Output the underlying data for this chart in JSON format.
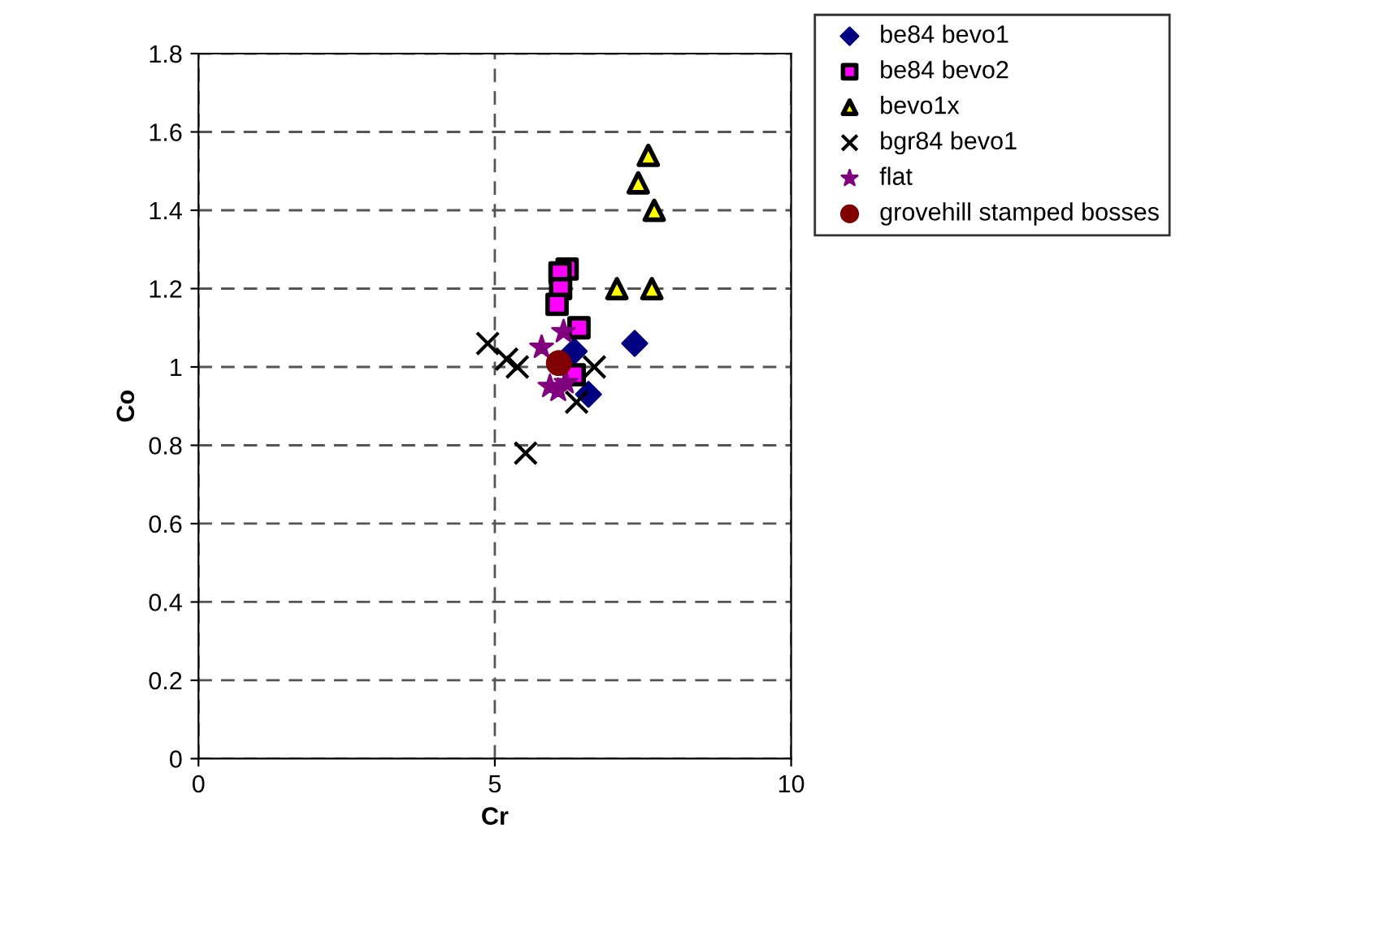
{
  "chart_data": {
    "type": "scatter",
    "xlabel": "Cr",
    "ylabel": "Co",
    "xlim": [
      0,
      10
    ],
    "ylim": [
      0,
      1.8
    ],
    "xticks": [
      0,
      5,
      10
    ],
    "yticks": [
      0,
      0.2,
      0.4,
      0.6,
      0.8,
      1,
      1.2,
      1.4,
      1.6,
      1.8
    ],
    "grid": true,
    "legend": "top right",
    "series": [
      {
        "name": "be84 bevo1",
        "color": "#000080",
        "marker": "diamond",
        "x": [
          7.36,
          6.34,
          6.58
        ],
        "values": [
          1.06,
          1.04,
          0.93
        ]
      },
      {
        "name": "be84 bevo2",
        "color": "#ff00ff",
        "marker": "square",
        "x": [
          6.22,
          6.1,
          6.11,
          6.05,
          6.42,
          6.34
        ],
        "values": [
          1.25,
          1.24,
          1.2,
          1.16,
          1.1,
          0.98
        ]
      },
      {
        "name": "bevo1x",
        "color": "#ffff00",
        "marker": "triangle",
        "x": [
          7.59,
          7.42,
          7.69,
          7.06,
          7.65
        ],
        "values": [
          1.54,
          1.47,
          1.4,
          1.2,
          1.2
        ]
      },
      {
        "name": "bgr84 bevo1",
        "color": "#000000",
        "marker": "cross",
        "x": [
          4.88,
          5.2,
          5.38,
          6.68,
          6.38,
          5.52
        ],
        "values": [
          1.06,
          1.02,
          1.0,
          1.0,
          0.91,
          0.78
        ]
      },
      {
        "name": "flat",
        "color": "#800080",
        "marker": "star",
        "x": [
          6.16,
          5.79,
          5.93,
          6.2,
          6.07
        ],
        "values": [
          1.09,
          1.05,
          0.95,
          0.96,
          0.94
        ]
      },
      {
        "name": "grovehill stamped bosses",
        "color": "#800000",
        "marker": "circle",
        "x": [
          6.08
        ],
        "values": [
          1.01
        ]
      }
    ]
  }
}
